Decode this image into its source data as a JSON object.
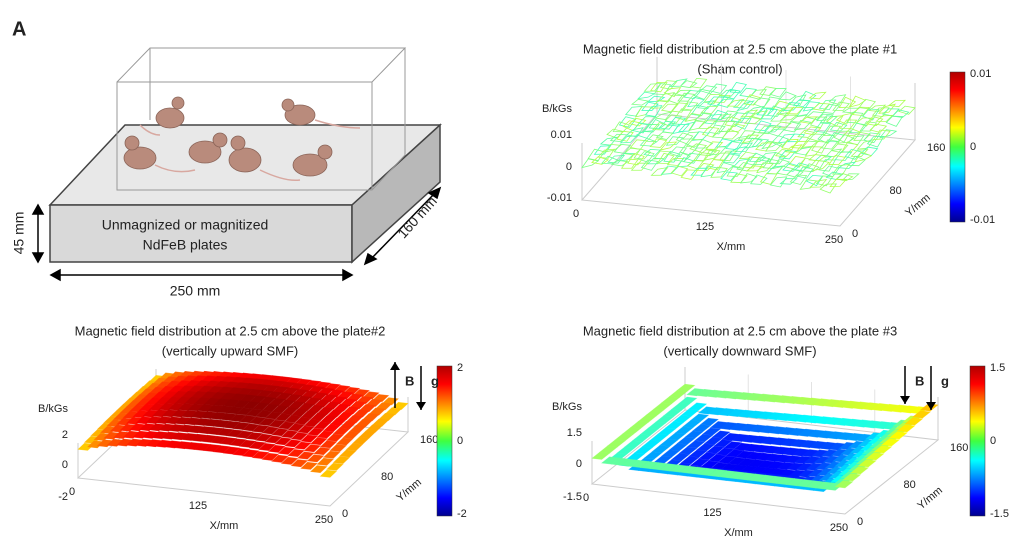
{
  "panel_label": "A",
  "diagram": {
    "plate_label": [
      "Unmagnized or magnitized",
      "NdFeB plates"
    ],
    "height": "45 mm",
    "length": "250 mm",
    "width": "160 mm"
  },
  "plots": [
    {
      "title": "Magnetic field distribution at 2.5 cm above the plate #1",
      "subtitle": "(Sham control)",
      "z_label": "B/kGs",
      "z_ticks": [
        "0.01",
        "0",
        "-0.01"
      ],
      "x_label": "X/mm",
      "x_ticks": [
        "0",
        "125",
        "250"
      ],
      "y_label": "Y/mm",
      "y_ticks": [
        "0",
        "80",
        "160"
      ],
      "colorbar_ticks": [
        "0.01",
        "0",
        "-0.01"
      ]
    },
    {
      "title": "Magnetic field distribution at 2.5 cm above the plate#2",
      "subtitle": "(vertically upward SMF)",
      "z_label": "B/kGs",
      "z_ticks": [
        "2",
        "0",
        "-2"
      ],
      "x_label": "X/mm",
      "x_ticks": [
        "0",
        "125",
        "250"
      ],
      "y_label": "Y/mm",
      "y_ticks": [
        "0",
        "80",
        "160"
      ],
      "colorbar_ticks": [
        "2",
        "0",
        "-2"
      ],
      "arrows": {
        "field": "B",
        "gravity": "g"
      }
    },
    {
      "title": "Magnetic field distribution at 2.5 cm above the plate #3",
      "subtitle": "(vertically downward SMF)",
      "z_label": "B/kGs",
      "z_ticks": [
        "1.5",
        "0",
        "-1.5"
      ],
      "x_label": "X/mm",
      "x_ticks": [
        "0",
        "125",
        "250"
      ],
      "y_label": "Y/mm",
      "y_ticks": [
        "0",
        "80",
        "160"
      ],
      "colorbar_ticks": [
        "1.5",
        "0",
        "-1.5"
      ],
      "arrows": {
        "field": "B",
        "gravity": "g"
      }
    }
  ]
}
